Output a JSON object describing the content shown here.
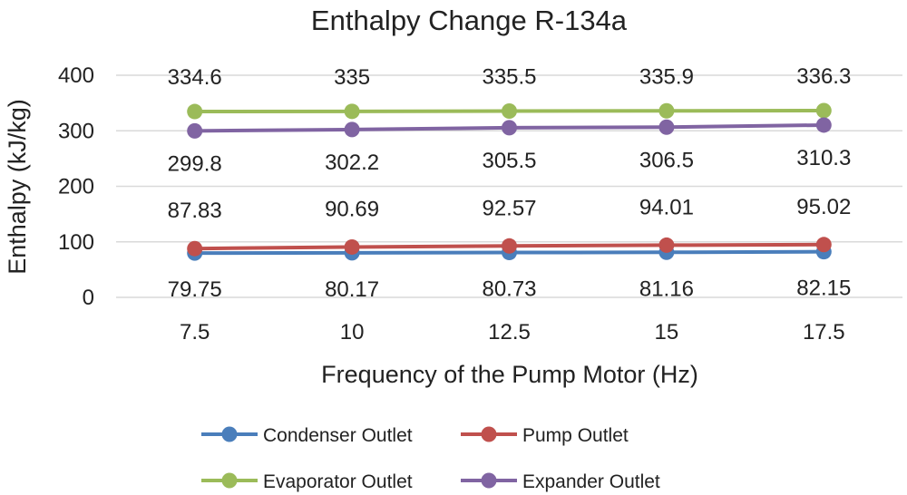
{
  "chart_data": {
    "type": "line",
    "title": "Enthalpy Change R-134a",
    "xlabel": "Frequency of the Pump Motor (Hz)",
    "ylabel": "Enthalpy (kJ/kg)",
    "categories": [
      "7.5",
      "10",
      "12.5",
      "15",
      "17.5"
    ],
    "ylim": [
      0,
      400
    ],
    "yticks": [
      "0",
      "100",
      "200",
      "300",
      "400"
    ],
    "grid": true,
    "legend_position": "bottom",
    "series": [
      {
        "name": "Condenser Outlet",
        "color": "#4a7ebb",
        "values": [
          79.75,
          80.17,
          80.73,
          81.16,
          82.15
        ],
        "labels": [
          "79.75",
          "80.17",
          "80.73",
          "81.16",
          "82.15"
        ]
      },
      {
        "name": "Pump Outlet",
        "color": "#c0504d",
        "values": [
          87.83,
          90.69,
          92.57,
          94.01,
          95.02
        ],
        "labels": [
          "87.83",
          "90.69",
          "92.57",
          "94.01",
          "95.02"
        ]
      },
      {
        "name": "Evaporator Outlet",
        "color": "#9bbb59",
        "values": [
          334.6,
          335,
          335.5,
          335.9,
          336.3
        ],
        "labels": [
          "334.6",
          "335",
          "335.5",
          "335.9",
          "336.3"
        ]
      },
      {
        "name": "Expander Outlet",
        "color": "#8064a2",
        "values": [
          299.8,
          302.2,
          305.5,
          306.5,
          310.3
        ],
        "labels": [
          "299.8",
          "302.2",
          "305.5",
          "306.5",
          "310.3"
        ]
      }
    ]
  }
}
